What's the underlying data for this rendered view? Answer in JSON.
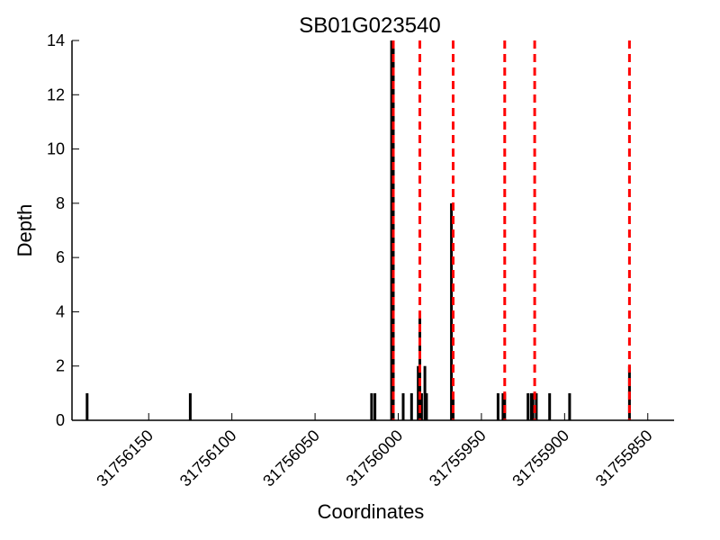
{
  "chart_data": {
    "type": "bar",
    "title": "SB01G023540",
    "xlabel": "Coordinates",
    "ylabel": "Depth",
    "xlim": [
      31756188,
      31755845
    ],
    "ylim": [
      0,
      14
    ],
    "x_reversed": true,
    "xticks": [
      31756150,
      31756100,
      31756050,
      31756000,
      31755950,
      31755900,
      31755850
    ],
    "yticks": [
      0,
      2,
      4,
      6,
      8,
      10,
      12,
      14
    ],
    "grid": false,
    "bar_color": "#000000",
    "bars": [
      {
        "x": 31756187,
        "y": 1
      },
      {
        "x": 31756125,
        "y": 1
      },
      {
        "x": 31756016,
        "y": 1
      },
      {
        "x": 31756014,
        "y": 1
      },
      {
        "x": 31756004,
        "y": 14
      },
      {
        "x": 31756003,
        "y": 14
      },
      {
        "x": 31755997,
        "y": 1
      },
      {
        "x": 31755992,
        "y": 1
      },
      {
        "x": 31755988,
        "y": 2
      },
      {
        "x": 31755987,
        "y": 4
      },
      {
        "x": 31755986,
        "y": 1
      },
      {
        "x": 31755984,
        "y": 2
      },
      {
        "x": 31755983,
        "y": 1
      },
      {
        "x": 31755968,
        "y": 8
      },
      {
        "x": 31755967,
        "y": 1
      },
      {
        "x": 31755940,
        "y": 1
      },
      {
        "x": 31755937,
        "y": 1
      },
      {
        "x": 31755936,
        "y": 1
      },
      {
        "x": 31755922,
        "y": 1
      },
      {
        "x": 31755920,
        "y": 1
      },
      {
        "x": 31755919,
        "y": 1
      },
      {
        "x": 31755917,
        "y": 1
      },
      {
        "x": 31755909,
        "y": 1
      },
      {
        "x": 31755897,
        "y": 1
      },
      {
        "x": 31755861,
        "y": 2
      }
    ],
    "reference_lines": {
      "color": "#ff0000",
      "style": "dashed",
      "x": [
        31756003,
        31755987,
        31755967,
        31755936,
        31755918,
        31755861
      ]
    }
  }
}
